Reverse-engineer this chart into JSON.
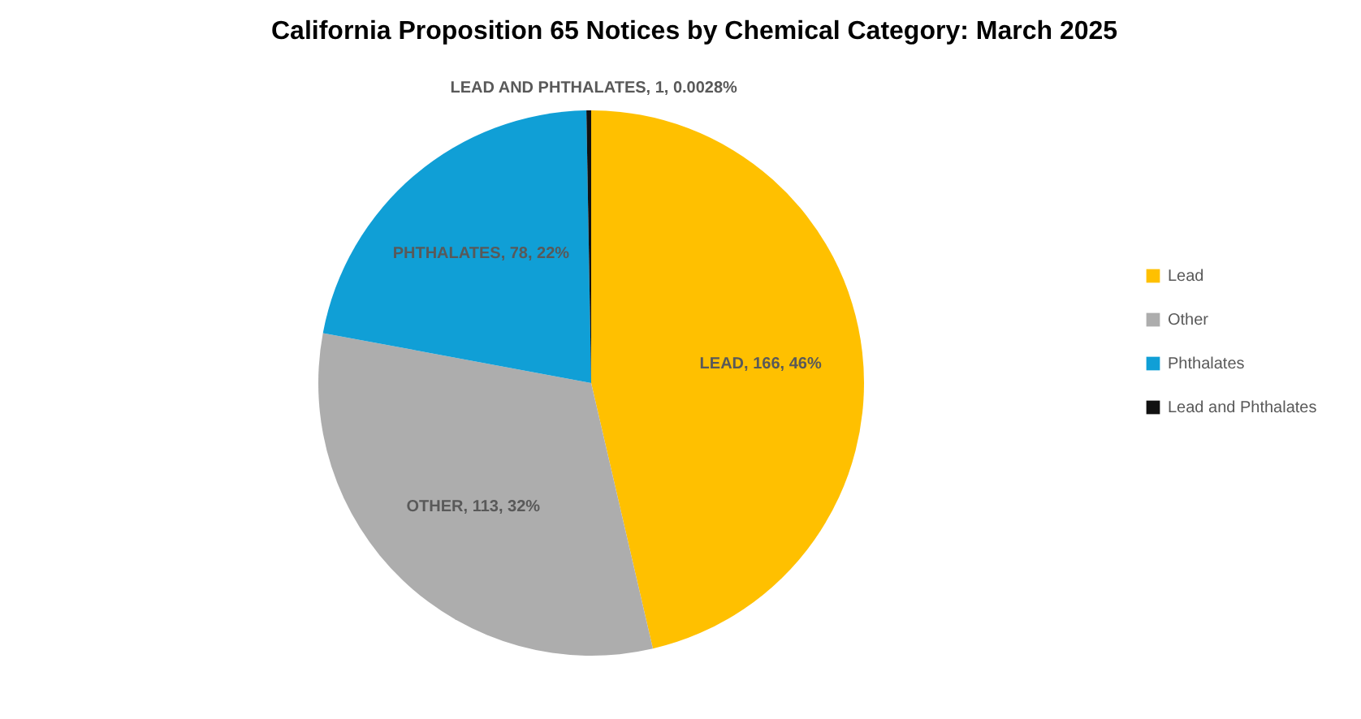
{
  "chart_data": {
    "type": "pie",
    "title": "California Proposition 65 Notices by Chemical Category: March 2025",
    "categories": [
      "Lead",
      "Other",
      "Phthalates",
      "Lead and Phthalates"
    ],
    "values": [
      166,
      113,
      78,
      1
    ],
    "colors": [
      "#ffc000",
      "#adadad",
      "#109fd6",
      "#111111"
    ],
    "value_labels": [
      "LEAD, 166, 46%",
      "OTHER, 113, 32%",
      "PHTHALATES, 78, 22%",
      "LEAD AND PHTHALATES, 1, 0.0028%"
    ],
    "legend": "right"
  }
}
